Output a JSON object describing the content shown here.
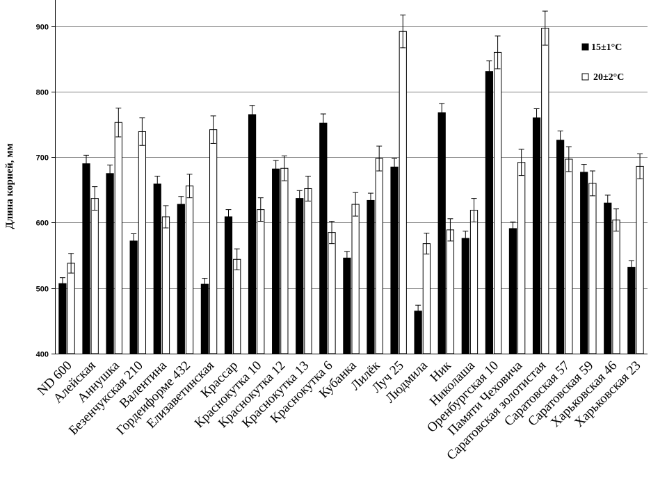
{
  "chart_data": {
    "type": "bar",
    "title": "",
    "xlabel": "",
    "ylabel": "Длина корней, мм",
    "ylim": [
      400,
      940
    ],
    "yticks": [
      400,
      500,
      600,
      700,
      800,
      900
    ],
    "grid": true,
    "legend_position": "top-right",
    "categories": [
      "ND 600",
      "Алейская",
      "Аннушка",
      "Безенчукская 210",
      "Валентина",
      "Гордеиформе 432",
      "Елизаветинская",
      "Крассар",
      "Краснокутка 10",
      "Краснокутка 12",
      "Краснокутка 13",
      "Краснокутка 6",
      "Кубанка",
      "Лилёк",
      "Луч 25",
      "Людмила",
      "Ник",
      "Николаша",
      "Оренбургская 10",
      "Памяти Чеховича",
      "Саратовская золотистая",
      "Саратовская 57",
      "Саратовская 59",
      "Харьковская 46",
      "Харьковская 23"
    ],
    "series": [
      {
        "name": "15±1°C",
        "color": "#000000",
        "values": [
          507,
          690,
          675,
          572,
          659,
          628,
          506,
          609,
          765,
          682,
          637,
          752,
          546,
          634,
          685,
          465,
          768,
          576,
          831,
          591,
          760,
          726,
          677,
          630,
          532
        ],
        "errors": [
          9,
          13,
          13,
          11,
          12,
          12,
          9,
          11,
          14,
          13,
          12,
          14,
          10,
          11,
          13,
          9,
          14,
          11,
          16,
          10,
          14,
          14,
          12,
          12,
          10
        ]
      },
      {
        "name": "20±2°C",
        "color": "#ffffff",
        "values": [
          538,
          637,
          753,
          739,
          609,
          656,
          742,
          544,
          620,
          683,
          652,
          585,
          628,
          698,
          892,
          568,
          589,
          619,
          860,
          692,
          897,
          697,
          660,
          604,
          686
        ],
        "errors": [
          15,
          18,
          22,
          21,
          17,
          18,
          21,
          16,
          18,
          19,
          19,
          17,
          18,
          19,
          25,
          16,
          17,
          18,
          25,
          20,
          26,
          19,
          19,
          17,
          19
        ]
      }
    ]
  }
}
